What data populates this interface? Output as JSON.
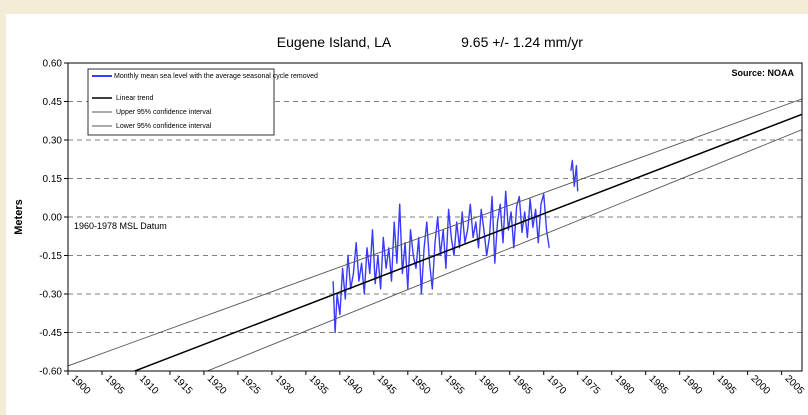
{
  "chart_data": {
    "type": "line",
    "title": "Eugene Island, LA",
    "subtitle": "9.65 +/- 1.24 mm/yr",
    "source": "Source: NOAA",
    "datum_note": "1960-1978 MSL Datum",
    "xlabel": "",
    "ylabel": "Meters",
    "xlim": [
      1900,
      2008
    ],
    "ylim": [
      -0.6,
      0.6
    ],
    "x_ticks": [
      "1900",
      "1905",
      "1910",
      "1915",
      "1920",
      "1925",
      "1930",
      "1935",
      "1940",
      "1945",
      "1950",
      "1955",
      "1960",
      "1965",
      "1970",
      "1975",
      "1980",
      "1985",
      "1990",
      "1995",
      "2000",
      "2005"
    ],
    "y_ticks": [
      "0.60",
      "0.45",
      "0.30",
      "0.15",
      "0.00",
      "-0.15",
      "-0.30",
      "-0.45",
      "-0.60"
    ],
    "grid": "horizontal dashed",
    "legend_position": "top-left",
    "legend": [
      {
        "label": "Monthly mean sea level with the average seasonal cycle removed",
        "color": "#3a3aff"
      },
      {
        "label": "Linear trend",
        "color": "#000000"
      },
      {
        "label": "Upper 95% confidence interval",
        "color": "#555555"
      },
      {
        "label": "Lower 95% confidence interval",
        "color": "#555555"
      }
    ],
    "series": [
      {
        "name": "Monthly mean sea level with the average seasonal cycle removed",
        "color": "#3a3aff",
        "x": [
          1939.0,
          1939.3,
          1939.6,
          1940.0,
          1940.4,
          1940.8,
          1941.2,
          1941.6,
          1942.0,
          1942.4,
          1942.8,
          1943.2,
          1943.6,
          1944.0,
          1944.4,
          1944.8,
          1945.2,
          1945.6,
          1946.0,
          1946.4,
          1946.8,
          1947.2,
          1947.6,
          1948.0,
          1948.4,
          1948.8,
          1949.2,
          1949.6,
          1950.0,
          1950.4,
          1950.8,
          1951.2,
          1951.6,
          1952.0,
          1952.4,
          1952.8,
          1953.2,
          1953.6,
          1954.0,
          1954.4,
          1954.8,
          1955.2,
          1955.6,
          1956.0,
          1956.4,
          1956.8,
          1957.2,
          1957.6,
          1958.0,
          1958.4,
          1958.8,
          1959.2,
          1959.6,
          1960.0,
          1960.4,
          1960.8,
          1961.2,
          1961.6,
          1962.0,
          1962.4,
          1962.8,
          1963.2,
          1963.6,
          1964.0,
          1964.4,
          1964.8,
          1965.2,
          1965.6,
          1966.0,
          1966.4,
          1966.8,
          1967.2,
          1967.6,
          1968.0,
          1968.4,
          1968.8,
          1969.2,
          1969.6,
          1970.0,
          1970.4,
          1970.8
        ],
        "y": [
          -0.25,
          -0.45,
          -0.3,
          -0.38,
          -0.2,
          -0.32,
          -0.15,
          -0.28,
          -0.22,
          -0.1,
          -0.25,
          -0.18,
          -0.3,
          -0.12,
          -0.22,
          -0.05,
          -0.26,
          -0.15,
          -0.28,
          -0.08,
          -0.2,
          -0.12,
          -0.25,
          -0.02,
          -0.18,
          0.05,
          -0.22,
          -0.1,
          -0.28,
          -0.05,
          -0.15,
          -0.2,
          -0.08,
          -0.3,
          -0.12,
          -0.02,
          -0.18,
          -0.28,
          -0.1,
          0.0,
          -0.15,
          -0.05,
          -0.2,
          0.03,
          -0.08,
          -0.15,
          -0.02,
          -0.12,
          0.02,
          -0.1,
          -0.05,
          0.05,
          -0.08,
          -0.02,
          -0.12,
          0.03,
          -0.05,
          -0.15,
          -0.08,
          0.08,
          -0.18,
          -0.02,
          0.05,
          -0.1,
          0.1,
          -0.05,
          0.02,
          -0.12,
          0.04,
          0.08,
          -0.06,
          0.02,
          -0.08,
          0.07,
          -0.04,
          0.03,
          -0.1,
          0.05,
          0.09,
          -0.05,
          -0.12
        ]
      },
      {
        "name": "Monthly mean sea level with the average seasonal cycle removed",
        "color": "#3a3aff",
        "x": [
          1974.0,
          1974.2,
          1974.5,
          1974.8,
          1975.0
        ],
        "y": [
          0.18,
          0.22,
          0.12,
          0.2,
          0.1
        ]
      },
      {
        "name": "Linear trend",
        "color": "#000000",
        "x": [
          1900,
          2008
        ],
        "y": [
          -0.7,
          0.4
        ]
      },
      {
        "name": "Upper 95% confidence interval",
        "color": "#555555",
        "x": [
          1900,
          2008
        ],
        "y": [
          -0.58,
          0.46
        ]
      },
      {
        "name": "Lower 95% confidence interval",
        "color": "#555555",
        "x": [
          1900,
          2008
        ],
        "y": [
          -0.82,
          0.34
        ]
      }
    ]
  }
}
